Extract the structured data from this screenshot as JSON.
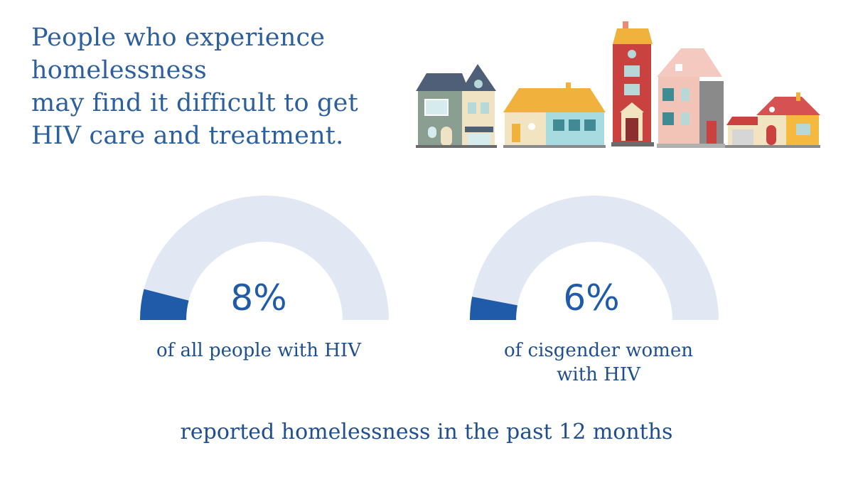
{
  "title_lines": [
    "People who experience homelessness",
    "may find it difficult to get",
    "HIV care and treatment."
  ],
  "chart_data": [
    {
      "type": "gauge",
      "value": 8,
      "max": 100,
      "label": "8%",
      "caption": "of all people with HIV"
    },
    {
      "type": "gauge",
      "value": 6,
      "max": 100,
      "label": "6%",
      "caption_lines": [
        "of cisgender women",
        "with HIV"
      ]
    }
  ],
  "footer": "reported homelessness in the past 12 months",
  "colors": {
    "title": "#2c5f9e",
    "track": "#e2e8f3",
    "fill": "#1f5ba8",
    "text": "#1f4f8f"
  }
}
